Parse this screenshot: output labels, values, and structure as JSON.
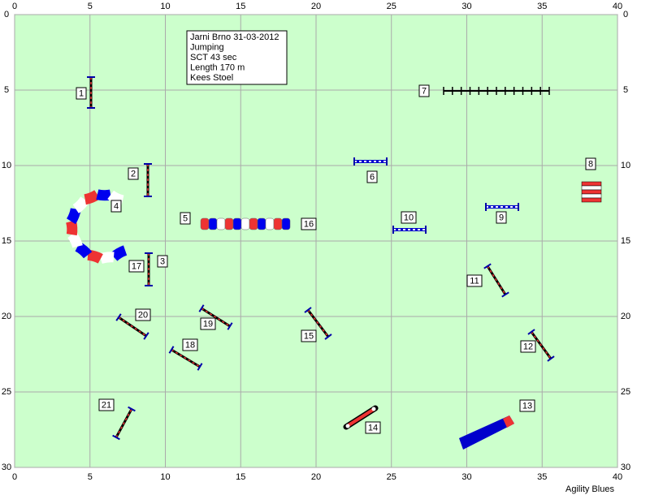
{
  "axes": {
    "xticks": [
      0,
      5,
      10,
      15,
      20,
      25,
      30,
      35,
      40
    ],
    "yticks": [
      0,
      5,
      10,
      15,
      20,
      25,
      30
    ]
  },
  "info": [
    "Jarni Brno 31-03-2012",
    "Jumping",
    "SCT 43 sec",
    "Length 170 m",
    "Kees Stoel"
  ],
  "obstacles": [
    "1",
    "2",
    "3",
    "4",
    "5",
    "6",
    "7",
    "8",
    "9",
    "10",
    "11",
    "12",
    "13",
    "14",
    "15",
    "16",
    "17",
    "18",
    "19",
    "20",
    "21"
  ],
  "footer": "Agility Blues"
}
